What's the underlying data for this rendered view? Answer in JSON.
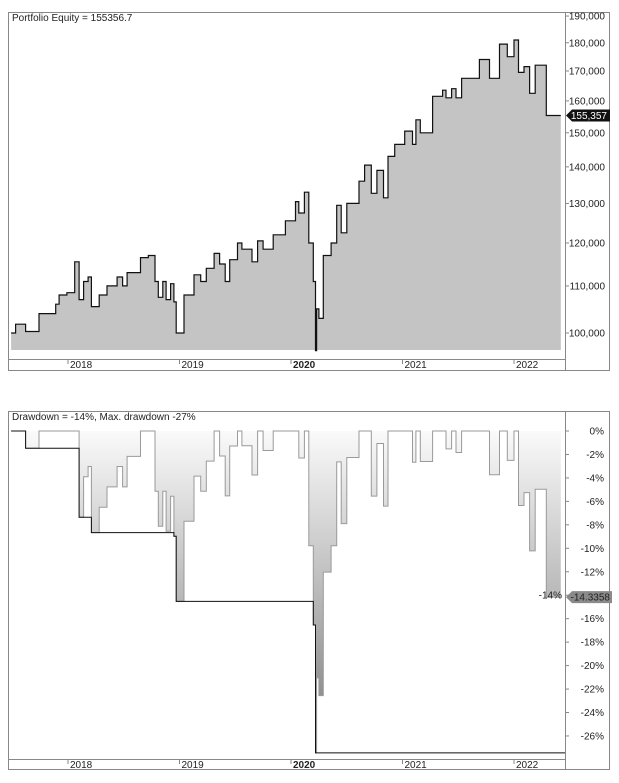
{
  "chart_data": [
    {
      "type": "area",
      "title": "Portfolio Equity = 155356.7",
      "y_scale": "log",
      "ylim": [
        96000,
        190000
      ],
      "y_ticks": [
        100000,
        110000,
        120000,
        130000,
        140000,
        150000,
        160000,
        170000,
        180000,
        190000
      ],
      "y_tick_labels": [
        "100,000",
        "110,000",
        "120,000",
        "130,000",
        "140,000",
        "150,000",
        "160,000",
        "170,000",
        "180,000",
        "190,000"
      ],
      "x_ticks": [
        2018,
        2019,
        2020,
        2021,
        2022
      ],
      "x_tick_labels": [
        "2018",
        "2019",
        "2020",
        "2021",
        "2022"
      ],
      "last_value_label": "155,357",
      "colors": {
        "fill": "#c4c4c4",
        "line": "#111111",
        "label_bg": "#111111"
      },
      "x": [
        2017.49,
        2017.53,
        2017.62,
        2017.74,
        2017.89,
        2017.92,
        2017.99,
        2018.06,
        2018.1,
        2018.14,
        2018.18,
        2018.21,
        2018.28,
        2018.35,
        2018.44,
        2018.49,
        2018.53,
        2018.65,
        2018.72,
        2018.78,
        2018.81,
        2018.85,
        2018.88,
        2018.92,
        2018.95,
        2018.97,
        2019.04,
        2019.13,
        2019.19,
        2019.24,
        2019.31,
        2019.36,
        2019.41,
        2019.45,
        2019.52,
        2019.56,
        2019.65,
        2019.7,
        2019.75,
        2019.84,
        2019.95,
        2020.04,
        2020.07,
        2020.12,
        2020.16,
        2020.2,
        2020.22,
        2020.23,
        2020.25,
        2020.29,
        2020.36,
        2020.41,
        2020.45,
        2020.5,
        2020.61,
        2020.66,
        2020.72,
        2020.77,
        2020.83,
        2020.87,
        2020.93,
        2021.02,
        2021.09,
        2021.12,
        2021.16,
        2021.27,
        2021.36,
        2021.39,
        2021.44,
        2021.48,
        2021.53,
        2021.69,
        2021.78,
        2021.87,
        2021.94,
        2022.0,
        2022.04,
        2022.09,
        2022.14,
        2022.19,
        2022.22,
        2022.29,
        2022.42
      ],
      "values": [
        100000,
        101800,
        100300,
        104000,
        106000,
        108000,
        108500,
        115500,
        107000,
        111000,
        112000,
        105500,
        108000,
        110000,
        112000,
        110000,
        113000,
        116500,
        117000,
        111000,
        107500,
        111000,
        107000,
        110500,
        106500,
        100000,
        108000,
        112500,
        111000,
        114000,
        117500,
        115000,
        111000,
        116000,
        120000,
        118500,
        115500,
        120500,
        118500,
        122000,
        125500,
        130500,
        127500,
        133000,
        120000,
        111000,
        96500,
        105000,
        103000,
        117000,
        120000,
        129500,
        122500,
        130000,
        136000,
        140500,
        132700,
        139000,
        131500,
        143000,
        146500,
        150500,
        146500,
        154000,
        150000,
        161500,
        163500,
        161000,
        164000,
        161000,
        167500,
        174000,
        167500,
        179500,
        175000,
        181000,
        169500,
        171500,
        162500,
        172000,
        172000,
        155357,
        155357
      ]
    },
    {
      "type": "area",
      "title": "Drawdown = -14%, Max. drawdown -27%",
      "ylim": [
        -28,
        0
      ],
      "y_ticks": [
        0,
        -2,
        -4,
        -6,
        -8,
        -10,
        -12,
        -14,
        -16,
        -18,
        -20,
        -22,
        -24,
        -26
      ],
      "y_tick_labels": [
        "0%",
        "-2%",
        "-4%",
        "-6%",
        "-8%",
        "-10%",
        "-12%",
        "-14%",
        "-16%",
        "-18%",
        "-20%",
        "-22%",
        "-24%",
        "-26%"
      ],
      "x_ticks": [
        2018,
        2019,
        2020,
        2021,
        2022
      ],
      "x_tick_labels": [
        "2018",
        "2019",
        "2020",
        "2021",
        "2022"
      ],
      "last_value_label": "-14.3358",
      "series": [
        "drawdown (derived from equity)",
        "max drawdown (running minimum)"
      ],
      "colors": {
        "line": "#9a9a9a",
        "fill_top": "#fafafa",
        "fill_bottom": "#7a7a7a",
        "max_line": "#111111",
        "label_bg": "#8a8a8a"
      }
    }
  ]
}
